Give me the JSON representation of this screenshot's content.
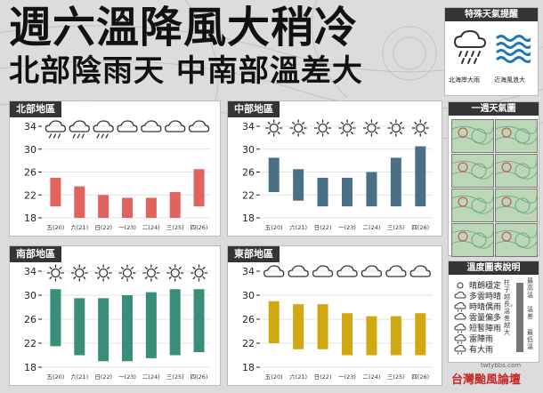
{
  "headline": {
    "line1": "週六溫降風大稍冷",
    "line2": "北部陰雨天 中南部溫差大"
  },
  "special_weather": {
    "title": "特殊天氣提醒",
    "items": [
      {
        "icon": "heavy-rain-icon",
        "label": "北海岸大雨"
      },
      {
        "icon": "waves-icon",
        "label": "近海風浪大"
      }
    ]
  },
  "weekly_map": {
    "title": "一週天氣圖"
  },
  "legend": {
    "title": "溫度圖表說明",
    "items": [
      "晴朗穩定",
      "多雲時晴",
      "時晴偶雨",
      "雲量偏多",
      "短暫陣雨",
      "雷陣雨",
      "有大雨"
    ],
    "bar_caption_left": "柱子越長，溫差越大",
    "bar_caption_top": "最高溫",
    "bar_caption_mid": "溫差",
    "bar_caption_bottom": "最低溫"
  },
  "footer": {
    "logo": "台灣颱風論壇",
    "url": "twtybbs.com"
  },
  "chart_data": [
    {
      "type": "bar",
      "title": "北部地區",
      "color": "#e2625e",
      "categories": [
        "五(20)",
        "六(21)",
        "日(22)",
        "一(23)",
        "二(24)",
        "三(25)",
        "四(26)"
      ],
      "icons": [
        "rain-icon",
        "rain-icon",
        "rain-icon",
        "cloudy-icon",
        "cloudy-icon",
        "cloudy-icon",
        "cloudy-icon"
      ],
      "low": [
        20,
        18,
        18,
        18,
        18,
        18,
        20
      ],
      "high": [
        25,
        23.5,
        22,
        21.5,
        21.5,
        22.5,
        26.5
      ],
      "yticks": [
        18,
        22,
        26,
        30,
        34
      ],
      "ylim": [
        18,
        34
      ]
    },
    {
      "type": "bar",
      "title": "中部地區",
      "color": "#4a7088",
      "categories": [
        "五(20)",
        "六(21)",
        "日(22)",
        "一(23)",
        "二(24)",
        "三(25)",
        "四(26)"
      ],
      "icons": [
        "sunny-icon",
        "sunny-icon",
        "sunny-icon",
        "sunny-icon",
        "sunny-icon",
        "sunny-icon",
        "sunny-icon"
      ],
      "low": [
        22.5,
        21,
        20,
        20,
        20,
        20,
        20
      ],
      "high": [
        28.5,
        26.5,
        25,
        25,
        26,
        28.5,
        30.5
      ],
      "yticks": [
        18,
        22,
        26,
        30,
        34
      ],
      "ylim": [
        18,
        34
      ]
    },
    {
      "type": "bar",
      "title": "南部地區",
      "color": "#3a8d78",
      "categories": [
        "五(20)",
        "六(21)",
        "日(22)",
        "一(23)",
        "二(24)",
        "三(25)",
        "四(26)"
      ],
      "icons": [
        "sunny-icon",
        "sunny-icon",
        "sunny-icon",
        "sunny-icon",
        "sunny-icon",
        "sunny-icon",
        "sunny-icon"
      ],
      "low": [
        21.5,
        20,
        19,
        19,
        19.5,
        20,
        20.5
      ],
      "high": [
        31,
        29.5,
        29.5,
        30,
        30.5,
        31,
        31
      ],
      "yticks": [
        18,
        22,
        26,
        30,
        34
      ],
      "ylim": [
        18,
        34
      ]
    },
    {
      "type": "bar",
      "title": "東部地區",
      "color": "#d1a812",
      "categories": [
        "五(20)",
        "六(21)",
        "日(22)",
        "一(23)",
        "二(24)",
        "三(25)",
        "四(26)"
      ],
      "icons": [
        "cloudy-icon",
        "cloudy-icon",
        "cloudy-icon",
        "cloudy-icon",
        "cloudy-icon",
        "cloudy-icon",
        "cloudy-icon"
      ],
      "low": [
        22,
        21,
        21,
        20,
        20,
        20,
        20
      ],
      "high": [
        29,
        28.5,
        28.5,
        27,
        26.5,
        26.5,
        27
      ],
      "yticks": [
        18,
        22,
        26,
        30,
        34
      ],
      "ylim": [
        18,
        34
      ]
    }
  ]
}
